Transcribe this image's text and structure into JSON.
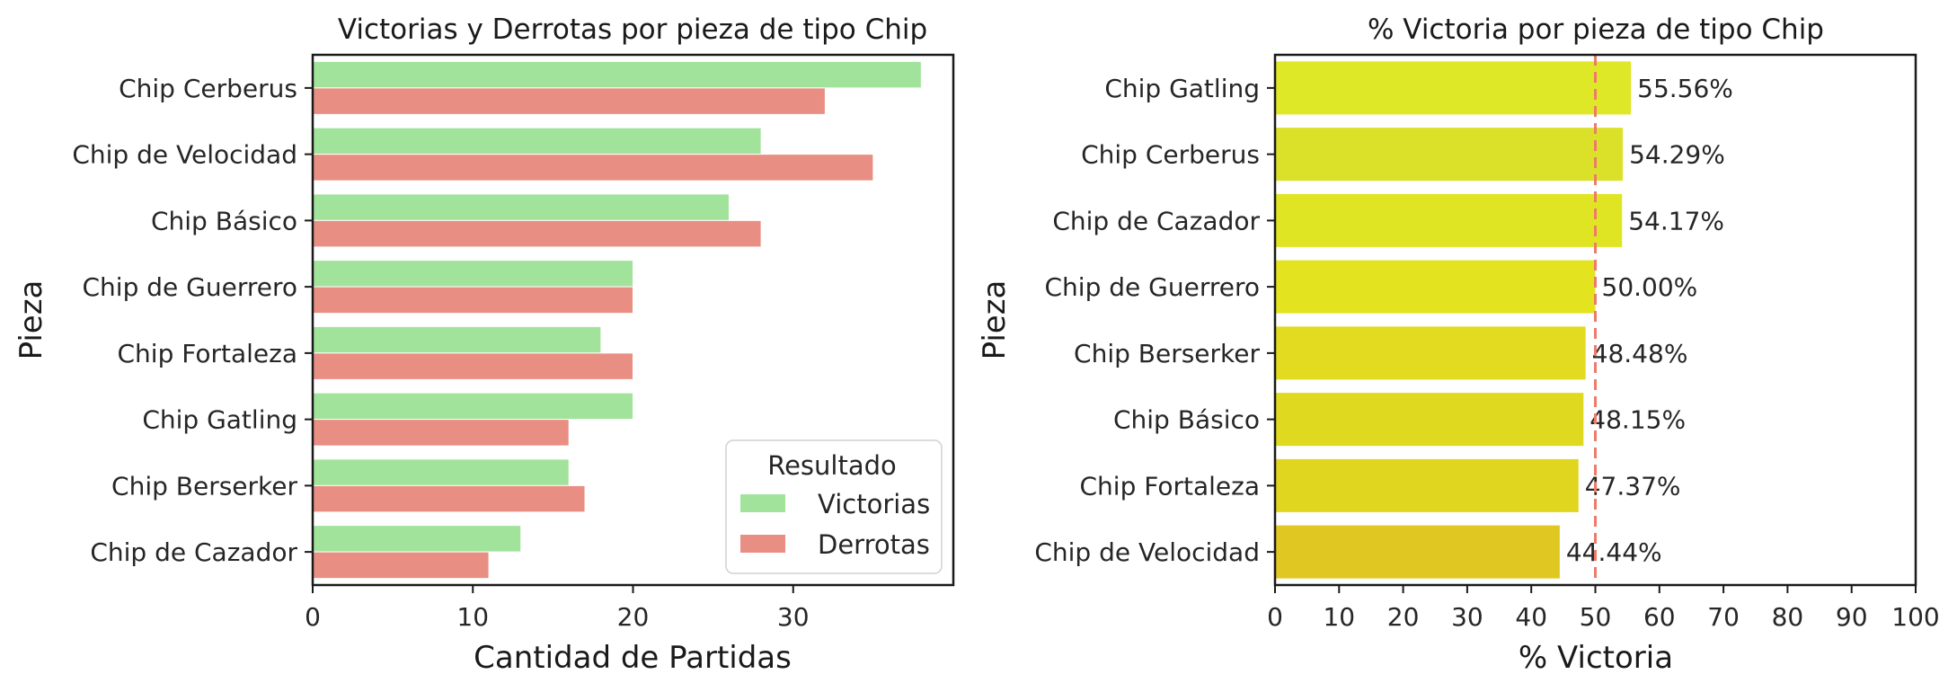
{
  "chart_data": [
    {
      "type": "bar",
      "orientation": "horizontal",
      "title": "Victorias y Derrotas por pieza de tipo Chip",
      "xlabel": "Cantidad de Partidas",
      "ylabel": "Pieza",
      "categories": [
        "Chip Cerberus",
        "Chip de Velocidad",
        "Chip Básico",
        "Chip de Guerrero",
        "Chip Fortaleza",
        "Chip Gatling",
        "Chip Berserker",
        "Chip de Cazador"
      ],
      "series": [
        {
          "name": "Victorias",
          "color": "#a1e39b",
          "values": [
            38,
            28,
            26,
            20,
            18,
            20,
            16,
            13
          ]
        },
        {
          "name": "Derrotas",
          "color": "#e98e83",
          "values": [
            32,
            35,
            28,
            20,
            20,
            16,
            17,
            11
          ]
        }
      ],
      "xlim": [
        0,
        40
      ],
      "xticks": [
        0,
        10,
        20,
        30
      ],
      "legend": {
        "title": "Resultado",
        "placement": "lower-right"
      },
      "grid": false
    },
    {
      "type": "bar",
      "orientation": "horizontal",
      "title": "% Victoria por pieza de tipo Chip",
      "xlabel": "% Victoria",
      "ylabel": "Pieza",
      "categories": [
        "Chip Gatling",
        "Chip Cerberus",
        "Chip de Cazador",
        "Chip de Guerrero",
        "Chip Berserker",
        "Chip Básico",
        "Chip Fortaleza",
        "Chip de Velocidad"
      ],
      "values": [
        55.56,
        54.29,
        54.17,
        50.0,
        48.48,
        48.15,
        47.37,
        44.44
      ],
      "data_labels": [
        "55.56%",
        "54.29%",
        "54.17%",
        "50.00%",
        "48.48%",
        "48.15%",
        "47.37%",
        "44.44%"
      ],
      "colors": [
        "#dfe826",
        "#dae128",
        "#dfe522",
        "#e4e31f",
        "#e2db20",
        "#dfd920",
        "#e1d61f",
        "#e0c721"
      ],
      "xlim": [
        0,
        100
      ],
      "xticks": [
        0,
        10,
        20,
        30,
        40,
        50,
        60,
        70,
        80,
        90,
        100
      ],
      "reference_line": {
        "x": 50,
        "color": "#ee7a6a",
        "style": "dashed"
      },
      "grid": false
    }
  ]
}
